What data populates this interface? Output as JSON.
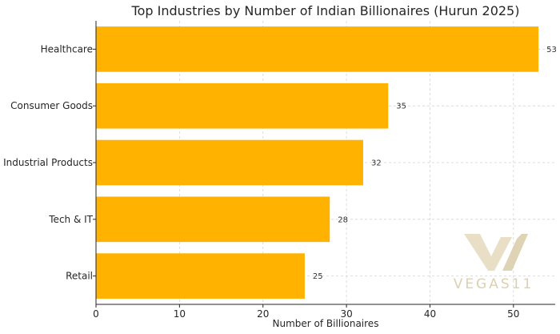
{
  "chart_data": {
    "type": "bar",
    "orientation": "horizontal",
    "title": "Top Industries by Number of Indian Billionaires (Hurun 2025)",
    "xlabel": "Number of Billionaires",
    "ylabel": "",
    "categories": [
      "Healthcare",
      "Consumer Goods",
      "Industrial Products",
      "Tech & IT",
      "Retail"
    ],
    "values": [
      53,
      35,
      32,
      28,
      25
    ],
    "xlim": [
      0,
      55
    ],
    "xticks": [
      0,
      10,
      20,
      30,
      40,
      50
    ],
    "grid": true,
    "bar_color": "#ffb200"
  },
  "watermark": {
    "text": "VEGAS11"
  }
}
